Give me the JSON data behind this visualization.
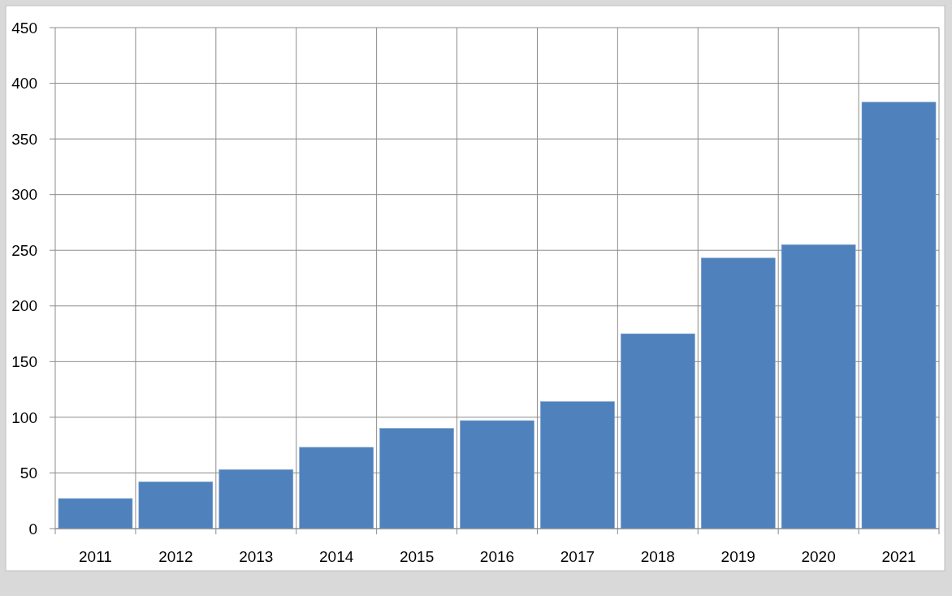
{
  "chart_data": {
    "type": "bar",
    "categories": [
      "2011",
      "2012",
      "2013",
      "2014",
      "2015",
      "2016",
      "2017",
      "2018",
      "2019",
      "2020",
      "2021"
    ],
    "values": [
      27,
      42,
      53,
      73,
      90,
      97,
      114,
      175,
      243,
      255,
      383
    ],
    "color": "#4f81bd",
    "ylim": [
      0,
      450
    ],
    "yticks": [
      0,
      50,
      100,
      150,
      200,
      250,
      300,
      350,
      400,
      450
    ],
    "grid": true
  }
}
